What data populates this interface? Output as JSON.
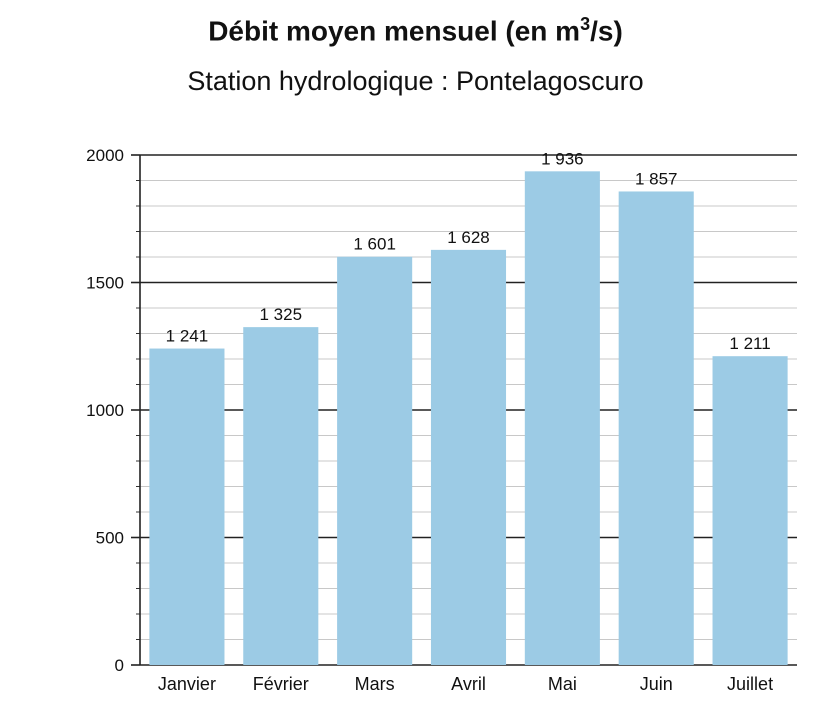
{
  "chart_data": {
    "type": "bar",
    "title_prefix": "Débit moyen mensuel (en m",
    "title_sup": "3",
    "title_suffix": "/s)",
    "subtitle": "Station hydrologique : Pontelagoscuro",
    "categories": [
      "Janvier",
      "Février",
      "Mars",
      "Avril",
      "Mai",
      "Juin",
      "Juillet"
    ],
    "values": [
      1241,
      1325,
      1601,
      1628,
      1936,
      1857,
      1211
    ],
    "value_labels": [
      "1 241",
      "1 325",
      "1 601",
      "1 628",
      "1 936",
      "1 857",
      "1 211"
    ],
    "ylim": [
      0,
      2000
    ],
    "yticks": [
      0,
      500,
      1000,
      1500,
      2000
    ],
    "minor_step": 100,
    "grid": true,
    "bar_color": "#9ccbe5"
  }
}
